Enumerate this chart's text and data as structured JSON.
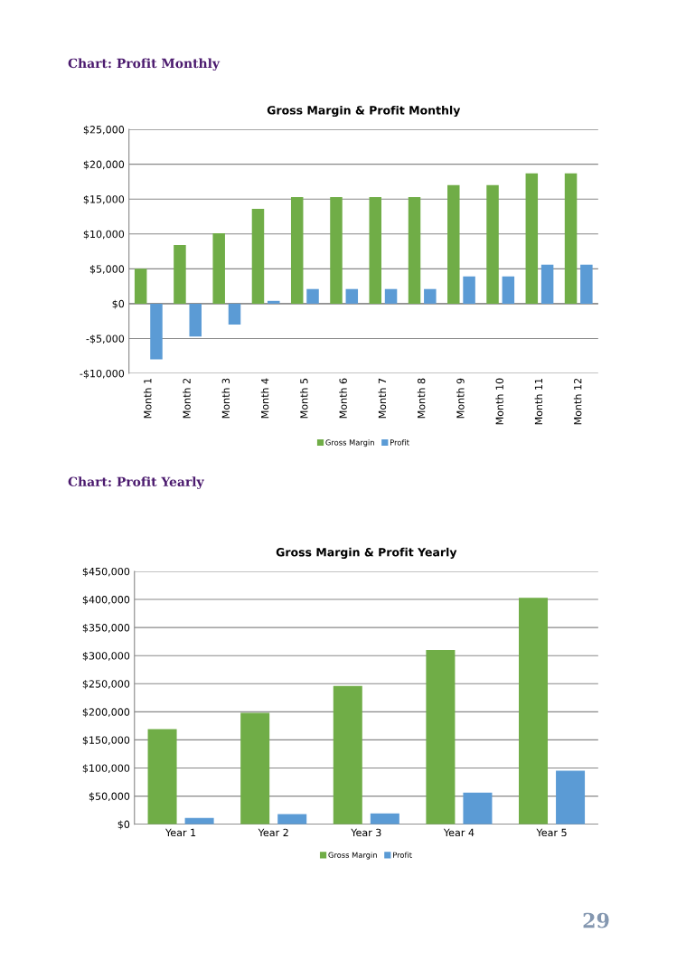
{
  "chart_data": [
    {
      "type": "bar",
      "title": "Gross Margin & Profit Monthly",
      "annotations": [
        "Chart: Profit Monthly"
      ],
      "categories": [
        "Month 1",
        "Month 2",
        "Month 3",
        "Month 4",
        "Month 5",
        "Month 6",
        "Month 7",
        "Month 8",
        "Month 9",
        "Month 10",
        "Month 11",
        "Month 12"
      ],
      "series": [
        {
          "name": "Gross Margin",
          "color": "#70ad47",
          "values": [
            5000,
            8400,
            10100,
            13600,
            15300,
            15300,
            15300,
            15300,
            17000,
            17000,
            18700,
            18700
          ]
        },
        {
          "name": "Profit",
          "color": "#5b9bd5",
          "values": [
            -8000,
            -4700,
            -3000,
            400,
            2100,
            2100,
            2100,
            2100,
            3900,
            3900,
            5600,
            5600
          ]
        }
      ],
      "ylim": [
        -10000,
        25000
      ],
      "yticks": [
        {
          "value": -10000,
          "label": "-$10,000"
        },
        {
          "value": -5000,
          "label": "-$5,000"
        },
        {
          "value": 0,
          "label": "$0"
        },
        {
          "value": 5000,
          "label": "$5,000"
        },
        {
          "value": 10000,
          "label": "$10,000"
        },
        {
          "value": 15000,
          "label": "$15,000"
        },
        {
          "value": 20000,
          "label": "$20,000"
        },
        {
          "value": 25000,
          "label": "$25,000"
        }
      ],
      "grid": "y",
      "legend": "bottom"
    },
    {
      "type": "bar",
      "title": "Gross Margin & Profit Yearly",
      "annotations": [
        "Chart: Profit Yearly",
        "29"
      ],
      "categories": [
        "Year 1",
        "Year 2",
        "Year 3",
        "Year 4",
        "Year 5"
      ],
      "series": [
        {
          "name": "Gross Margin",
          "color": "#70ad47",
          "values": [
            169000,
            198000,
            246000,
            310000,
            403000
          ]
        },
        {
          "name": "Profit",
          "color": "#5b9bd5",
          "values": [
            11000,
            18000,
            19000,
            56000,
            95000
          ]
        }
      ],
      "ylim": [
        0,
        450000
      ],
      "yticks": [
        {
          "value": 0,
          "label": "$0"
        },
        {
          "value": 50000,
          "label": "$50,000"
        },
        {
          "value": 100000,
          "label": "$100,000"
        },
        {
          "value": 150000,
          "label": "$150,000"
        },
        {
          "value": 200000,
          "label": "$200,000"
        },
        {
          "value": 250000,
          "label": "$250,000"
        },
        {
          "value": 300000,
          "label": "$300,000"
        },
        {
          "value": 350000,
          "label": "$350,000"
        },
        {
          "value": 400000,
          "label": "$400,000"
        },
        {
          "value": 450000,
          "label": "$450,000"
        }
      ],
      "grid": "y",
      "legend": "bottom"
    }
  ]
}
